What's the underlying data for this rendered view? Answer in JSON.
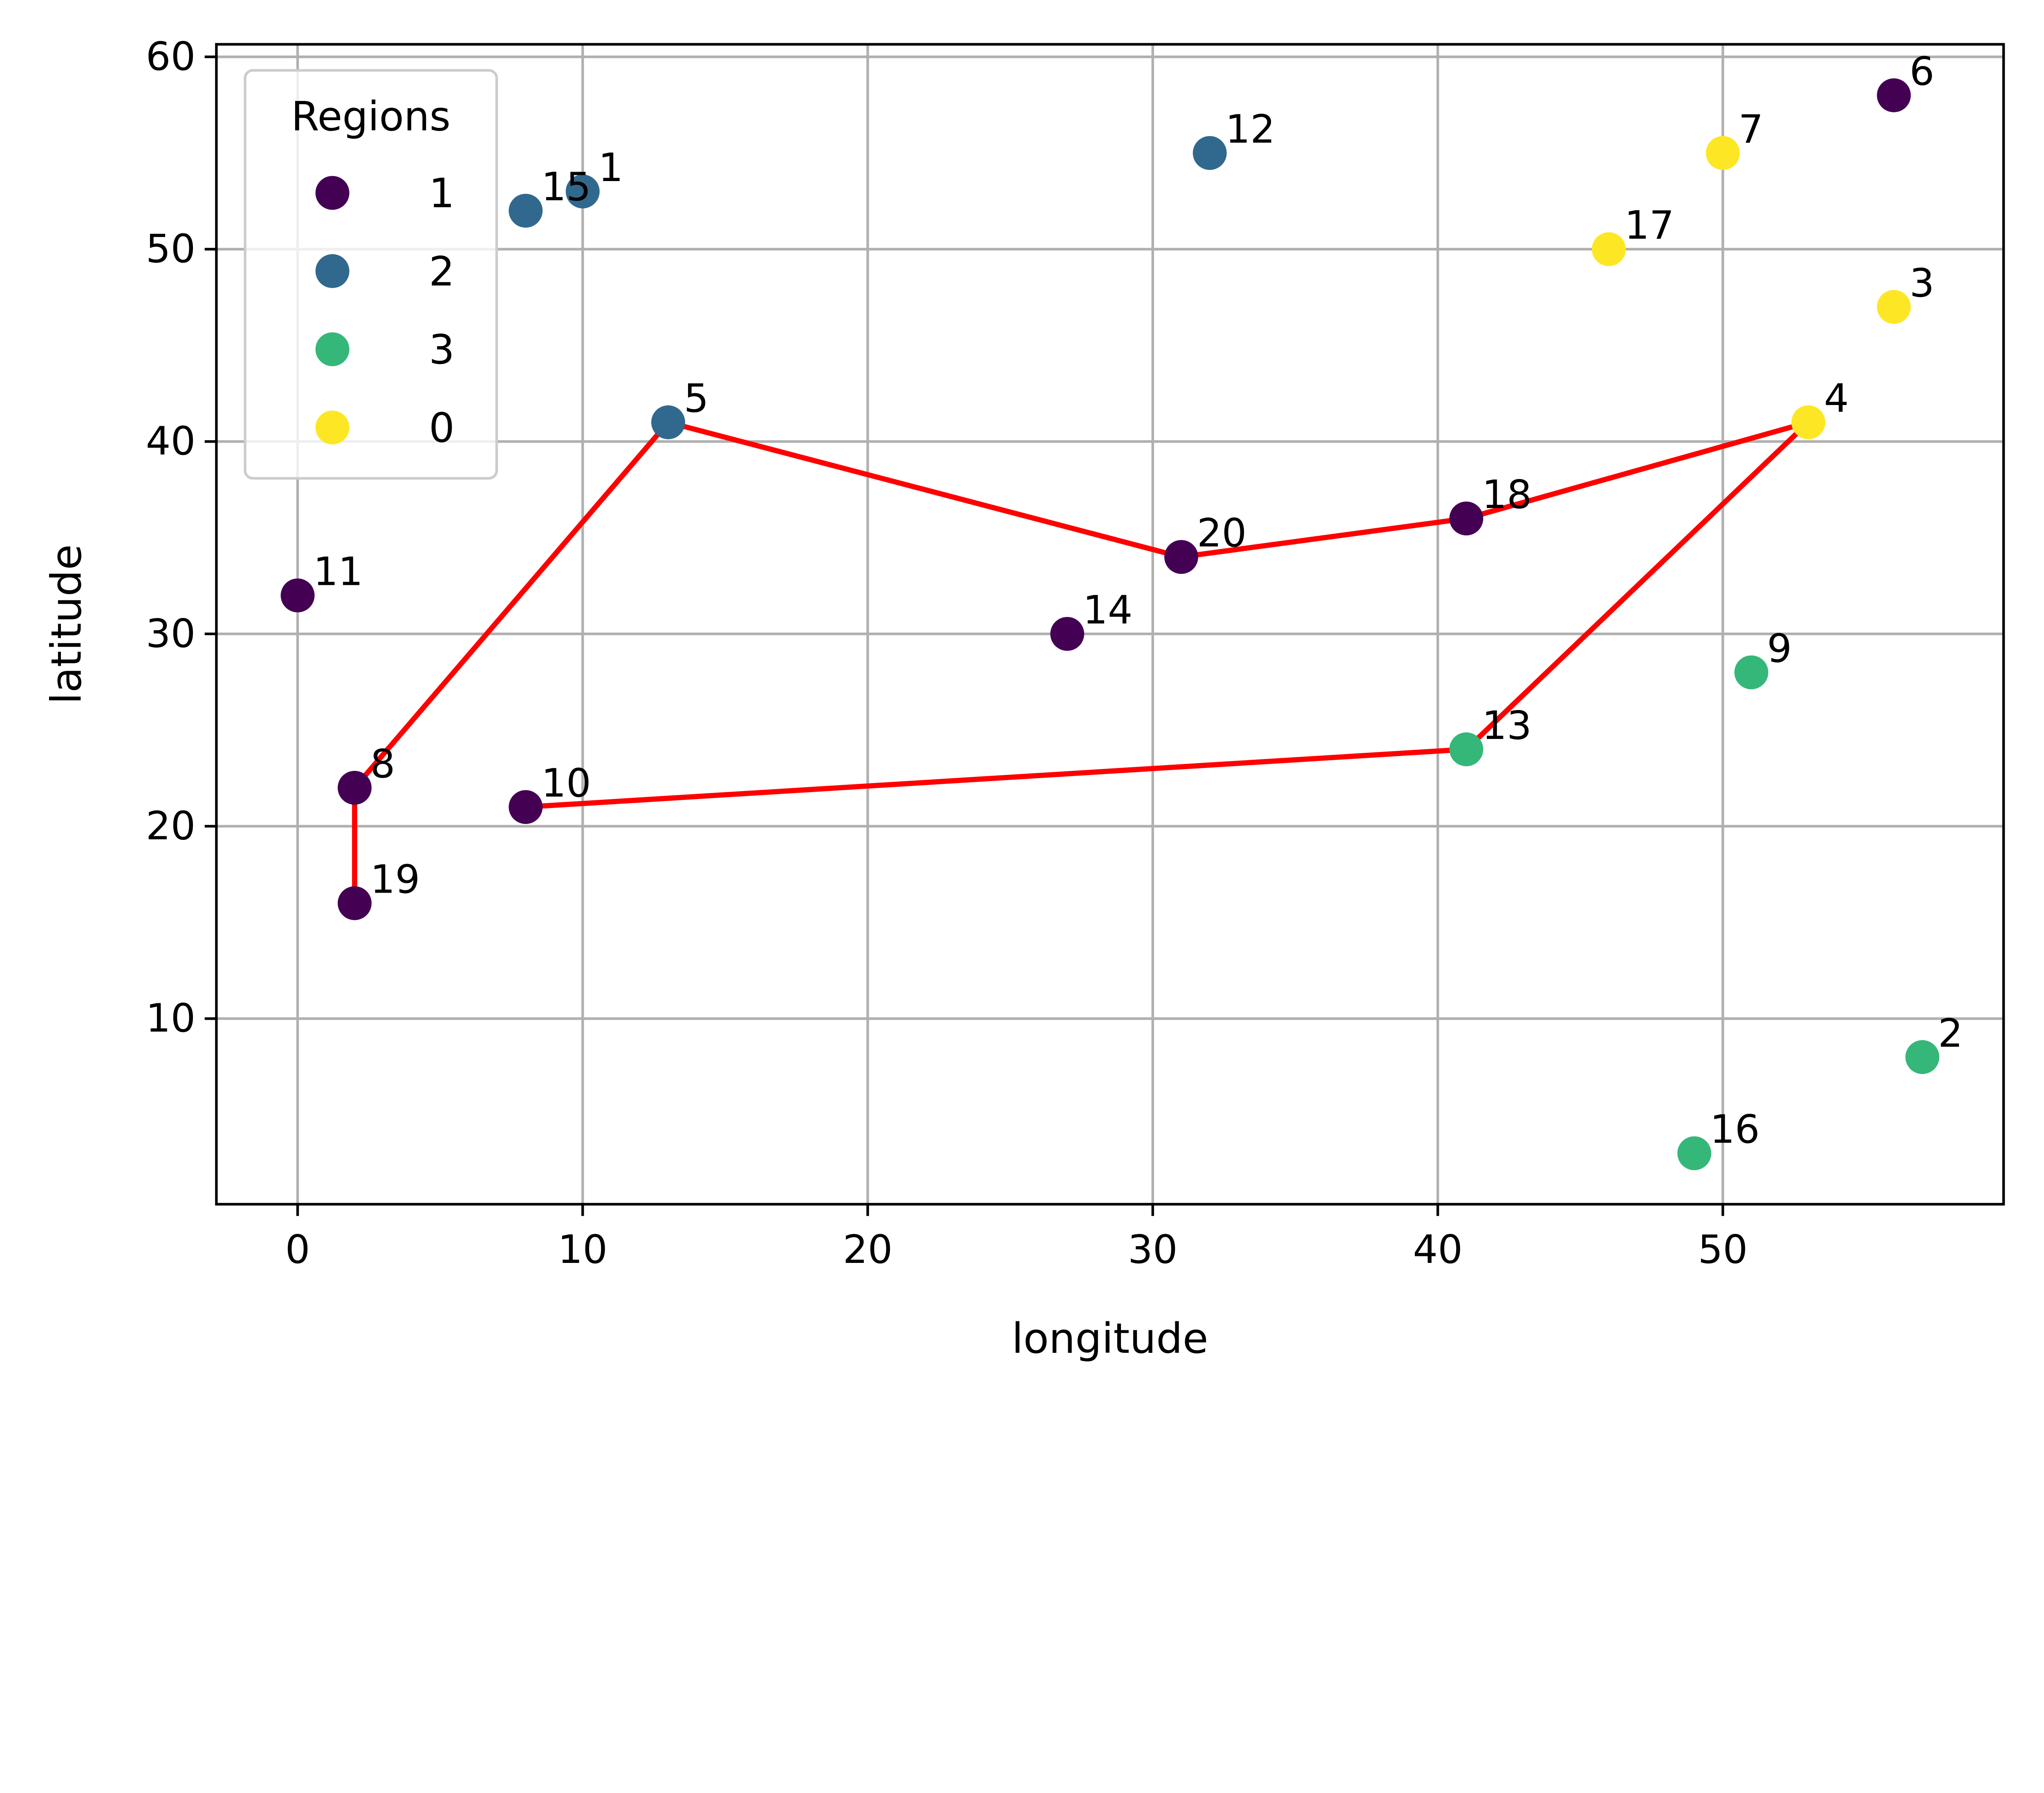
{
  "chart_data": {
    "type": "scatter",
    "xlabel": "longitude",
    "ylabel": "latitude",
    "xlim": [
      -2.85,
      59.85
    ],
    "ylim": [
      0.35,
      60.65
    ],
    "xticks": [
      0,
      10,
      20,
      30,
      40,
      50
    ],
    "yticks": [
      10,
      20,
      30,
      40,
      50,
      60
    ],
    "grid": true,
    "legend": {
      "title": "Regions",
      "placement": "top-left",
      "entries": [
        {
          "label": "1",
          "color": "#440154"
        },
        {
          "label": "2",
          "color": "#31688e"
        },
        {
          "label": "3",
          "color": "#35b779"
        },
        {
          "label": "0",
          "color": "#fde725"
        }
      ]
    },
    "points": [
      {
        "id": "1",
        "x": 10,
        "y": 53,
        "region": "2"
      },
      {
        "id": "2",
        "x": 57,
        "y": 8,
        "region": "3"
      },
      {
        "id": "3",
        "x": 56,
        "y": 47,
        "region": "0"
      },
      {
        "id": "4",
        "x": 53,
        "y": 41,
        "region": "0"
      },
      {
        "id": "5",
        "x": 13,
        "y": 41,
        "region": "2"
      },
      {
        "id": "6",
        "x": 56,
        "y": 58,
        "region": "1"
      },
      {
        "id": "7",
        "x": 50,
        "y": 55,
        "region": "0"
      },
      {
        "id": "8",
        "x": 2,
        "y": 22,
        "region": "1"
      },
      {
        "id": "9",
        "x": 51,
        "y": 28,
        "region": "3"
      },
      {
        "id": "10",
        "x": 8,
        "y": 21,
        "region": "1"
      },
      {
        "id": "11",
        "x": 0,
        "y": 32,
        "region": "1"
      },
      {
        "id": "12",
        "x": 32,
        "y": 55,
        "region": "2"
      },
      {
        "id": "13",
        "x": 41,
        "y": 24,
        "region": "3"
      },
      {
        "id": "14",
        "x": 27,
        "y": 30,
        "region": "1"
      },
      {
        "id": "15",
        "x": 8,
        "y": 52,
        "region": "2"
      },
      {
        "id": "16",
        "x": 49,
        "y": 3,
        "region": "3"
      },
      {
        "id": "17",
        "x": 46,
        "y": 50,
        "region": "0"
      },
      {
        "id": "18",
        "x": 41,
        "y": 36,
        "region": "1"
      },
      {
        "id": "19",
        "x": 2,
        "y": 16,
        "region": "1"
      },
      {
        "id": "20",
        "x": 31,
        "y": 34,
        "region": "1"
      }
    ],
    "route": {
      "color": "#ff0000",
      "path": [
        {
          "x": 8,
          "y": 21
        },
        {
          "x": 41,
          "y": 24
        },
        {
          "x": 53,
          "y": 41
        },
        {
          "x": 41,
          "y": 36
        },
        {
          "x": 31,
          "y": 34
        },
        {
          "x": 13,
          "y": 41
        },
        {
          "x": 2,
          "y": 22
        },
        {
          "x": 2,
          "y": 16
        }
      ]
    }
  }
}
